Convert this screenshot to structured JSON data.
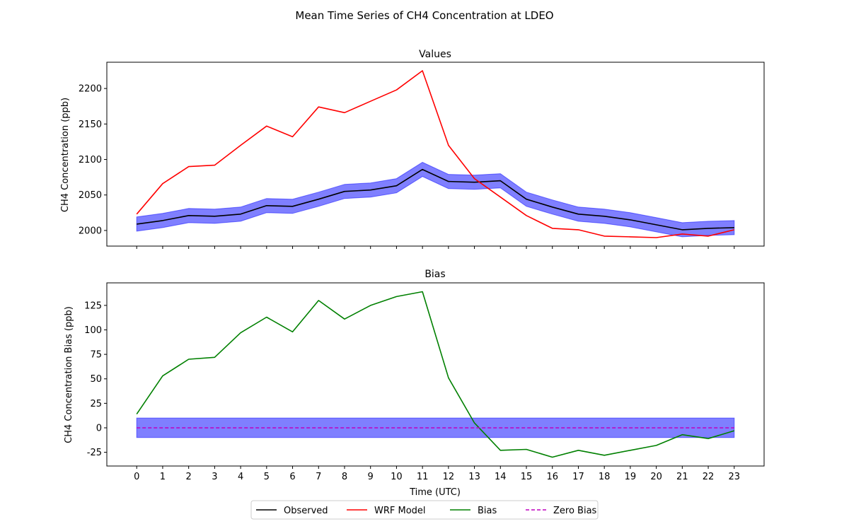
{
  "figure_title": "Mean Time Series of CH4 Concentration at LDEO",
  "x_tick_labels": [
    "0",
    "1",
    "2",
    "3",
    "4",
    "5",
    "6",
    "7",
    "8",
    "9",
    "10",
    "11",
    "12",
    "13",
    "14",
    "15",
    "16",
    "17",
    "18",
    "19",
    "20",
    "21",
    "22",
    "23"
  ],
  "xlabel": "Time (UTC)",
  "legend": {
    "placement": "bottom-center",
    "entries": [
      {
        "label": "Observed",
        "color": "#000000",
        "style": "solid"
      },
      {
        "label": "WRF Model",
        "color": "#ff0000",
        "style": "solid"
      },
      {
        "label": "Bias",
        "color": "#008000",
        "style": "solid"
      },
      {
        "label": "Zero Bias",
        "color": "#bf00bf",
        "style": "dashed"
      }
    ]
  },
  "chart_data": [
    {
      "type": "line",
      "title": "Values",
      "xlabel": "",
      "ylabel": "CH4 Concentration (ppb)",
      "x": [
        0,
        1,
        2,
        3,
        4,
        5,
        6,
        7,
        8,
        9,
        10,
        11,
        12,
        13,
        14,
        15,
        16,
        17,
        18,
        19,
        20,
        21,
        22,
        23
      ],
      "xlim": [
        -1.15,
        24.15
      ],
      "ylim": [
        1978,
        2237
      ],
      "y_ticks": [
        2000,
        2050,
        2100,
        2150,
        2200
      ],
      "series": [
        {
          "name": "Observed",
          "color": "#000000",
          "values": [
            2009,
            2014,
            2021,
            2020,
            2023,
            2035,
            2034,
            2044,
            2055,
            2057,
            2063,
            2086,
            2069,
            2068,
            2070,
            2044,
            2033,
            2023,
            2020,
            2015,
            2008,
            2001,
            2003,
            2004
          ],
          "band": 10,
          "band_color": "#0000ff"
        },
        {
          "name": "WRF Model",
          "color": "#ff0000",
          "values": [
            2023,
            2066,
            2090,
            2092,
            2120,
            2147,
            2132,
            2174,
            2166,
            2182,
            2198,
            2225,
            2120,
            2073,
            2047,
            2021,
            2003,
            2001,
            1992,
            1991,
            1990,
            1995,
            1992,
            2001
          ]
        }
      ]
    },
    {
      "type": "line",
      "title": "Bias",
      "xlabel": "Time (UTC)",
      "ylabel": "CH4 Concentration Bias (ppb)",
      "x": [
        0,
        1,
        2,
        3,
        4,
        5,
        6,
        7,
        8,
        9,
        10,
        11,
        12,
        13,
        14,
        15,
        16,
        17,
        18,
        19,
        20,
        21,
        22,
        23
      ],
      "xlim": [
        -1.15,
        24.15
      ],
      "ylim": [
        -39,
        148
      ],
      "y_ticks": [
        -25,
        0,
        25,
        50,
        75,
        100,
        125
      ],
      "series": [
        {
          "name": "Bias",
          "color": "#008000",
          "values": [
            14,
            53,
            70,
            72,
            97,
            113,
            98,
            130,
            111,
            125,
            134,
            139,
            51,
            5,
            -23,
            -22,
            -30,
            -23,
            -28,
            -23,
            -18,
            -7,
            -11,
            -3
          ]
        },
        {
          "name": "Zero Bias",
          "color": "#bf00bf",
          "style": "dashed",
          "values": [
            0,
            0,
            0,
            0,
            0,
            0,
            0,
            0,
            0,
            0,
            0,
            0,
            0,
            0,
            0,
            0,
            0,
            0,
            0,
            0,
            0,
            0,
            0,
            0
          ],
          "band": 10,
          "band_color": "#0000ff"
        }
      ]
    }
  ]
}
